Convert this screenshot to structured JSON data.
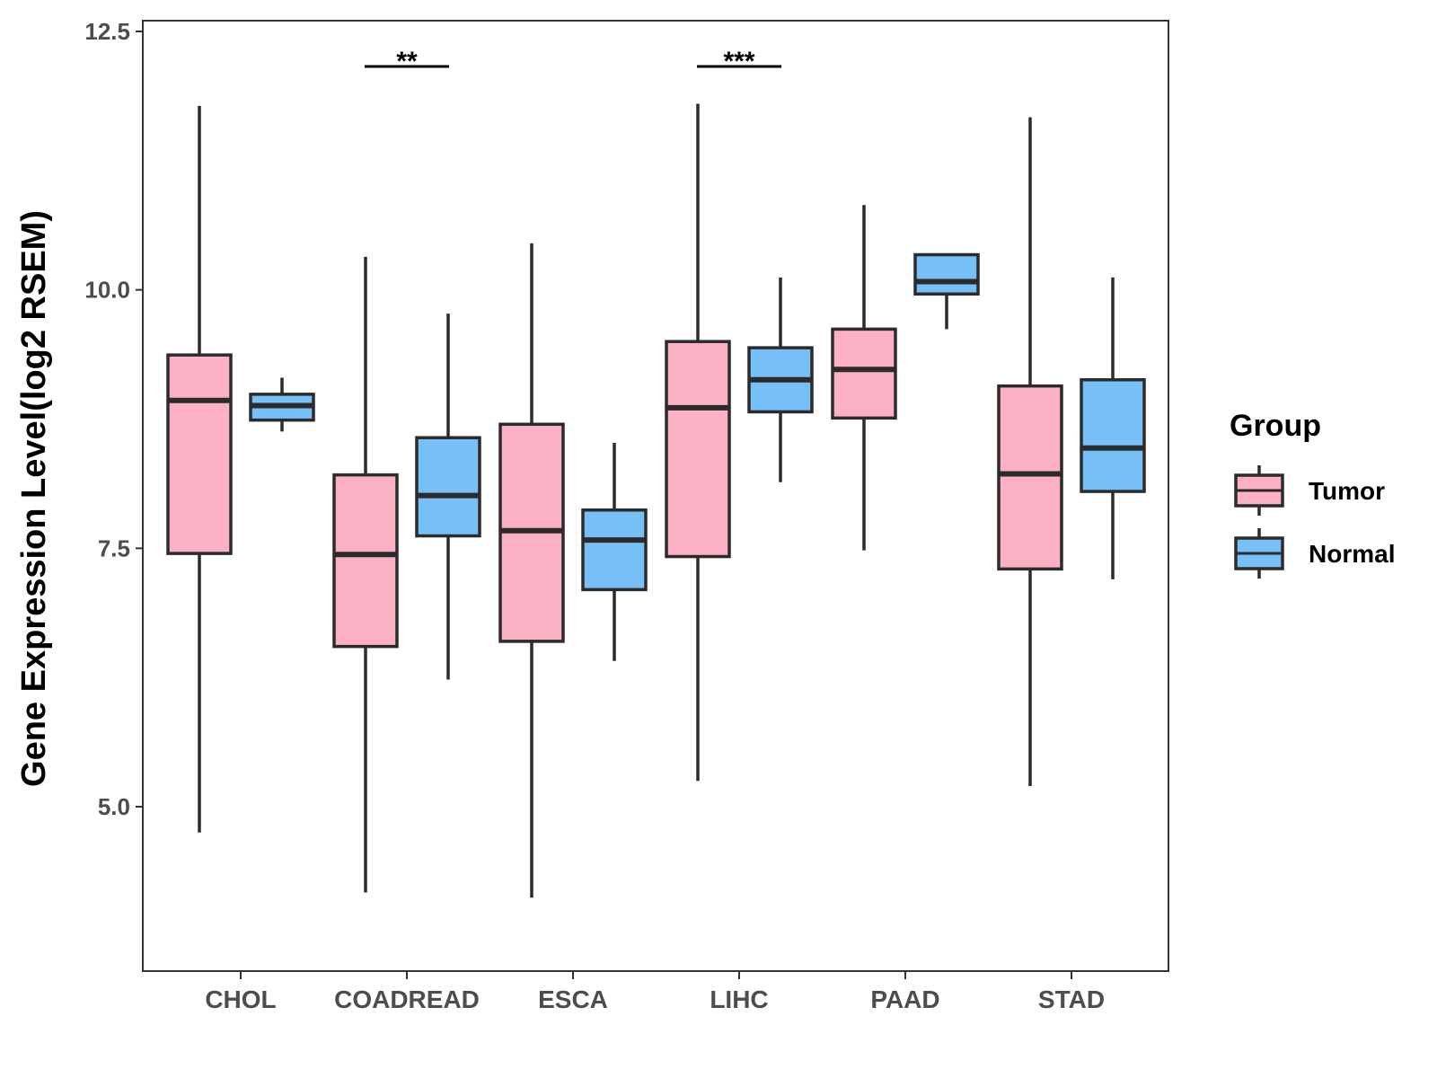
{
  "chart_data": {
    "type": "boxplot",
    "title": "",
    "xlabel": "",
    "ylabel": "Gene Expression Level(log2 RSEM)",
    "ylim": [
      3.5,
      12.7
    ],
    "yticks": [
      5.0,
      7.5,
      10.0,
      12.5
    ],
    "ytick_labels": [
      "5.0",
      "7.5",
      "10.0",
      "12.5"
    ],
    "categories": [
      "CHOL",
      "COADREAD",
      "ESCA",
      "LIHC",
      "PAAD",
      "STAD"
    ],
    "legend": {
      "title": "Group",
      "position": "right",
      "entries": [
        "Tumor",
        "Normal"
      ]
    },
    "series": [
      {
        "name": "Tumor",
        "color": "#fbb1c3",
        "boxes": [
          {
            "min": 4.75,
            "q1": 7.45,
            "median": 8.93,
            "q3": 9.37,
            "max": 11.78
          },
          {
            "min": 4.17,
            "q1": 6.55,
            "median": 7.44,
            "q3": 8.21,
            "max": 10.32
          },
          {
            "min": 4.12,
            "q1": 6.6,
            "median": 7.67,
            "q3": 8.7,
            "max": 10.45
          },
          {
            "min": 5.25,
            "q1": 7.42,
            "median": 8.86,
            "q3": 9.5,
            "max": 11.8
          },
          {
            "min": 7.48,
            "q1": 8.76,
            "median": 9.23,
            "q3": 9.62,
            "max": 10.82
          },
          {
            "min": 5.2,
            "q1": 7.3,
            "median": 8.22,
            "q3": 9.07,
            "max": 11.67
          }
        ]
      },
      {
        "name": "Normal",
        "color": "#77c0f7",
        "boxes": [
          {
            "min": 8.63,
            "q1": 8.74,
            "median": 8.88,
            "q3": 8.99,
            "max": 9.15
          },
          {
            "min": 6.23,
            "q1": 7.62,
            "median": 8.01,
            "q3": 8.57,
            "max": 9.77
          },
          {
            "min": 6.41,
            "q1": 7.1,
            "median": 7.58,
            "q3": 7.87,
            "max": 8.52
          },
          {
            "min": 8.14,
            "q1": 8.82,
            "median": 9.13,
            "q3": 9.44,
            "max": 10.12
          },
          {
            "min": 9.62,
            "q1": 9.96,
            "median": 10.08,
            "q3": 10.34,
            "max": 10.34
          },
          {
            "min": 7.2,
            "q1": 8.05,
            "median": 8.47,
            "q3": 9.13,
            "max": 10.12
          }
        ]
      }
    ],
    "significance": [
      {
        "category": "COADREAD",
        "label": "**"
      },
      {
        "category": "LIHC",
        "label": "***"
      }
    ]
  }
}
